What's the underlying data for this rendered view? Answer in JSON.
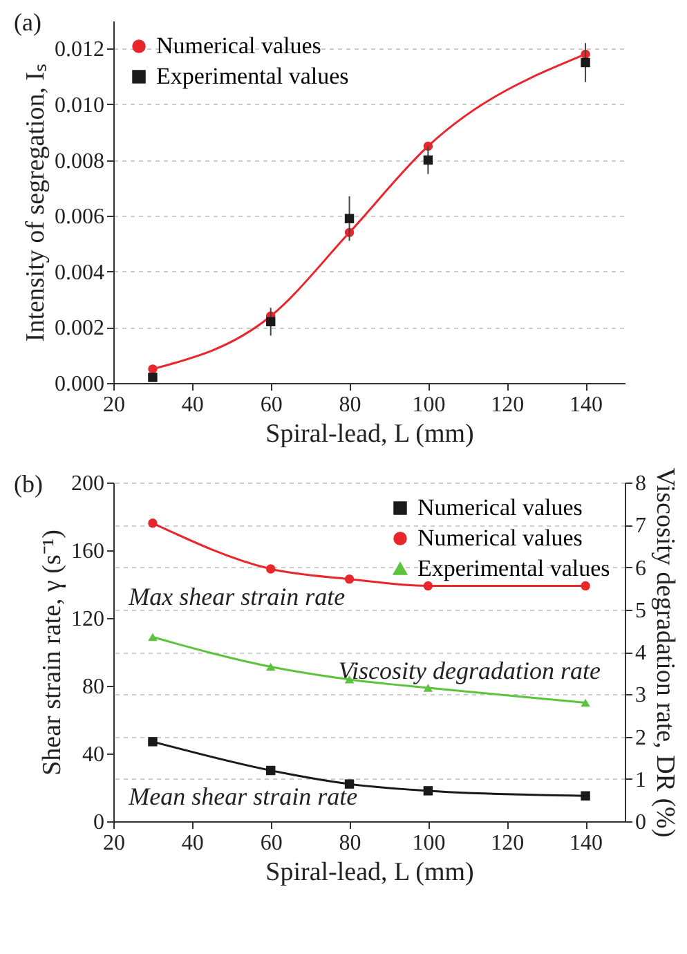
{
  "chart_data": [
    {
      "type": "line",
      "xlabel": "Spiral-lead, L (mm)",
      "ylabel": "Intensity of segregation, Iₛ",
      "annotations": [
        "(a)"
      ],
      "x": [
        30,
        60,
        80,
        100,
        140
      ],
      "series": [
        {
          "name": "Numerical values",
          "type": "line",
          "marker": "circle",
          "color": "#e8262b",
          "values": [
            0.0005,
            0.0024,
            0.0054,
            0.0085,
            0.0118
          ]
        },
        {
          "name": "Experimental values",
          "type": "scatter",
          "marker": "square",
          "color": "#1a1a1a",
          "values": [
            0.0002,
            0.0022,
            0.0059,
            0.008,
            0.0115
          ],
          "errors": [
            null,
            0.0005,
            0.0008,
            0.0005,
            0.0007
          ]
        }
      ],
      "xlim": [
        20,
        150
      ],
      "xticks": [
        20,
        40,
        60,
        80,
        100,
        120,
        140
      ],
      "ylim": [
        0,
        0.013
      ],
      "yticks": [
        {
          "value": 0,
          "label": "0.000"
        },
        {
          "value": 0.002,
          "label": "0.002"
        },
        {
          "value": 0.004,
          "label": "0.004"
        },
        {
          "value": 0.006,
          "label": "0.006"
        },
        {
          "value": 0.008,
          "label": "0.008"
        },
        {
          "value": 0.01,
          "label": "0.010"
        },
        {
          "value": 0.012,
          "label": "0.012"
        }
      ],
      "grid": "y",
      "legend": "top left"
    },
    {
      "type": "line",
      "xlabel": "Spiral-lead, L (mm)",
      "ylabel": "Shear strain rate, γ (s⁻¹)",
      "y2label": "Viscosity degradation rate, DR (%)",
      "annotations": [
        "(b)",
        "Max shear strain rate",
        "Viscosity degradation rate",
        "Mean shear strain rate"
      ],
      "x": [
        30,
        60,
        80,
        100,
        140
      ],
      "series": [
        {
          "name": "Numerical values",
          "type": "line",
          "marker": "square",
          "color": "#1a1a1a",
          "values": [
            47,
            30,
            22,
            18,
            15
          ]
        },
        {
          "name": "Numerical values",
          "type": "line",
          "marker": "circle",
          "color": "#e8262b",
          "values": [
            176,
            149,
            143,
            139,
            139
          ]
        },
        {
          "name": "Experimental values",
          "type": "line",
          "marker": "triangle",
          "color": "#5cc43c",
          "axis": "y2",
          "values": [
            4.35,
            3.65,
            3.35,
            3.15,
            2.8
          ]
        }
      ],
      "xlim": [
        20,
        150
      ],
      "xticks": [
        20,
        40,
        60,
        80,
        100,
        120,
        140
      ],
      "ylim": [
        0,
        200
      ],
      "yticks": [
        0,
        40,
        80,
        120,
        160,
        200
      ],
      "y2lim": [
        0,
        8
      ],
      "y2ticks": [
        0,
        1,
        2,
        3,
        4,
        5,
        6,
        7,
        8
      ],
      "grid": "y2",
      "legend": "top right"
    }
  ]
}
